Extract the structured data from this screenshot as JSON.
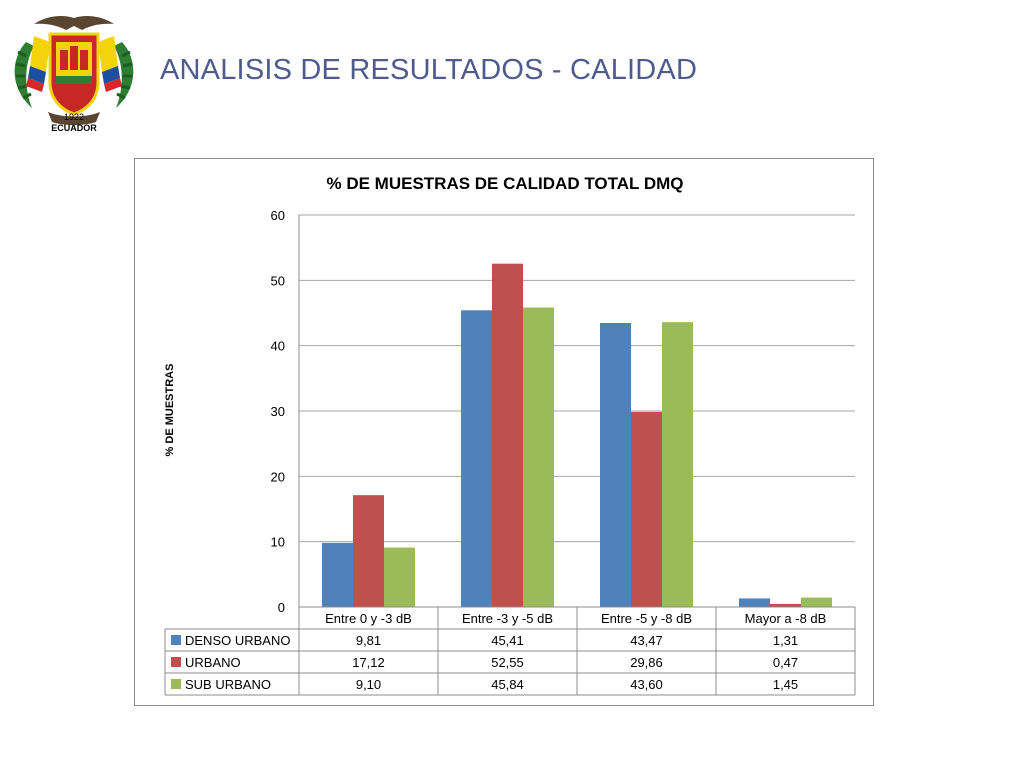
{
  "slide": {
    "title": "ANALISIS DE RESULTADOS - CALIDAD",
    "logo": {
      "year_text": "1922",
      "country_text": "ECUADOR"
    }
  },
  "colors": {
    "title": "#4f5b8c",
    "series": [
      "#4f81bd",
      "#c0504d",
      "#9bbb59"
    ],
    "grid": "#a6a6a6"
  },
  "chart_data": {
    "type": "bar",
    "title": "% DE MUESTRAS DE CALIDAD TOTAL DMQ",
    "xlabel": "",
    "ylabel": "% DE MUESTRAS",
    "ylim": [
      0,
      60
    ],
    "yticks": [
      0,
      10,
      20,
      30,
      40,
      50,
      60
    ],
    "grid": true,
    "legend": "data-table",
    "categories": [
      "Entre 0 y -3 dB",
      "Entre -3 y -5 dB",
      "Entre -5 y -8 dB",
      "Mayor a -8 dB"
    ],
    "series": [
      {
        "name": "DENSO URBANO",
        "values": [
          9.81,
          45.41,
          43.47,
          1.31
        ],
        "labels": [
          "9,81",
          "45,41",
          "43,47",
          "1,31"
        ]
      },
      {
        "name": "URBANO",
        "values": [
          17.12,
          52.55,
          29.86,
          0.47
        ],
        "labels": [
          "17,12",
          "52,55",
          "29,86",
          "0,47"
        ]
      },
      {
        "name": "SUB URBANO",
        "values": [
          9.1,
          45.84,
          43.6,
          1.45
        ],
        "labels": [
          "9,10",
          "45,84",
          "43,60",
          "1,45"
        ]
      }
    ]
  }
}
